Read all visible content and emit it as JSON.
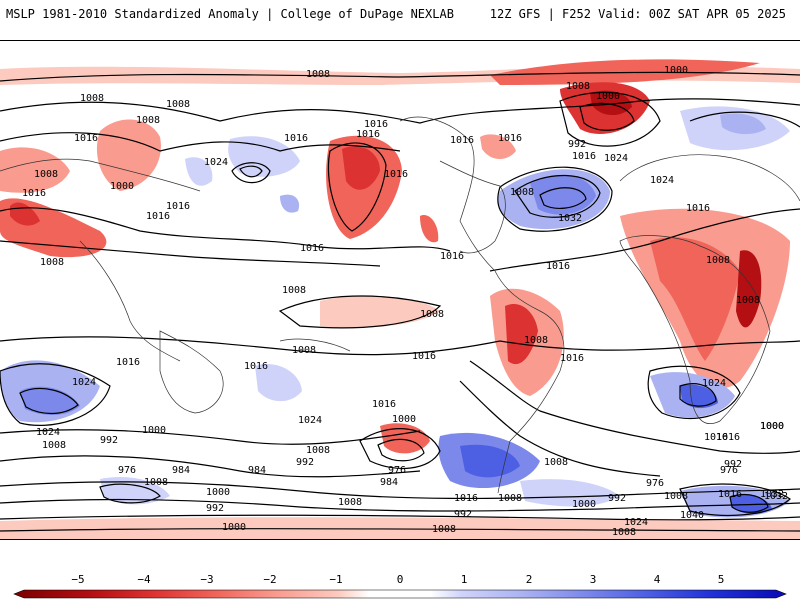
{
  "header": {
    "title": "MSLP 1981-2010 Standardized Anomaly | College of DuPage NEXLAB",
    "run_info": "12Z GFS | F252 Valid: 00Z SAT APR 05 2025"
  },
  "map": {
    "contour_labels": [
      "1008",
      "1000",
      "1008",
      "1008",
      "1008",
      "1016",
      "1016",
      "1016",
      "1016",
      "1000",
      "1008",
      "1016",
      "1016",
      "1016",
      "1008",
      "1024",
      "1016",
      "1016",
      "992",
      "1016",
      "1024",
      "1000",
      "1016",
      "1008",
      "1016",
      "1016",
      "1016",
      "1008",
      "1032",
      "1016",
      "1024",
      "1008",
      "1016",
      "1008",
      "1008",
      "1008",
      "1008",
      "1016",
      "1016",
      "1016",
      "1024",
      "1008",
      "1024",
      "1008",
      "1024",
      "1000",
      "992",
      "1000",
      "1016",
      "1024",
      "1000",
      "1008",
      "976",
      "984",
      "984",
      "992",
      "976",
      "1008",
      "1008",
      "1016",
      "976",
      "984",
      "1016",
      "1000",
      "1000",
      "992",
      "992",
      "992",
      "1008",
      "976",
      "1008",
      "1016",
      "1032",
      "1024",
      "1040",
      "1008",
      "1000",
      "1008",
      "1008",
      "992",
      "1032",
      "1000",
      "1016"
    ]
  },
  "colorbar": {
    "ticks": [
      "−5",
      "−4",
      "−3",
      "−2",
      "−1",
      "0",
      "1",
      "2",
      "3",
      "4",
      "5"
    ],
    "colors": {
      "neg5": "#7a0000",
      "neg4": "#b40f12",
      "neg3": "#dc3232",
      "neg2": "#f0645a",
      "neg1": "#fa9b8f",
      "neg05": "#fccabf",
      "zero": "#ffffff",
      "pos05": "#cfd3fa",
      "pos1": "#aab2f2",
      "pos2": "#7c88ea",
      "pos3": "#4d5fe2",
      "pos4": "#2233d8",
      "pos5": "#0a0ab4"
    }
  }
}
